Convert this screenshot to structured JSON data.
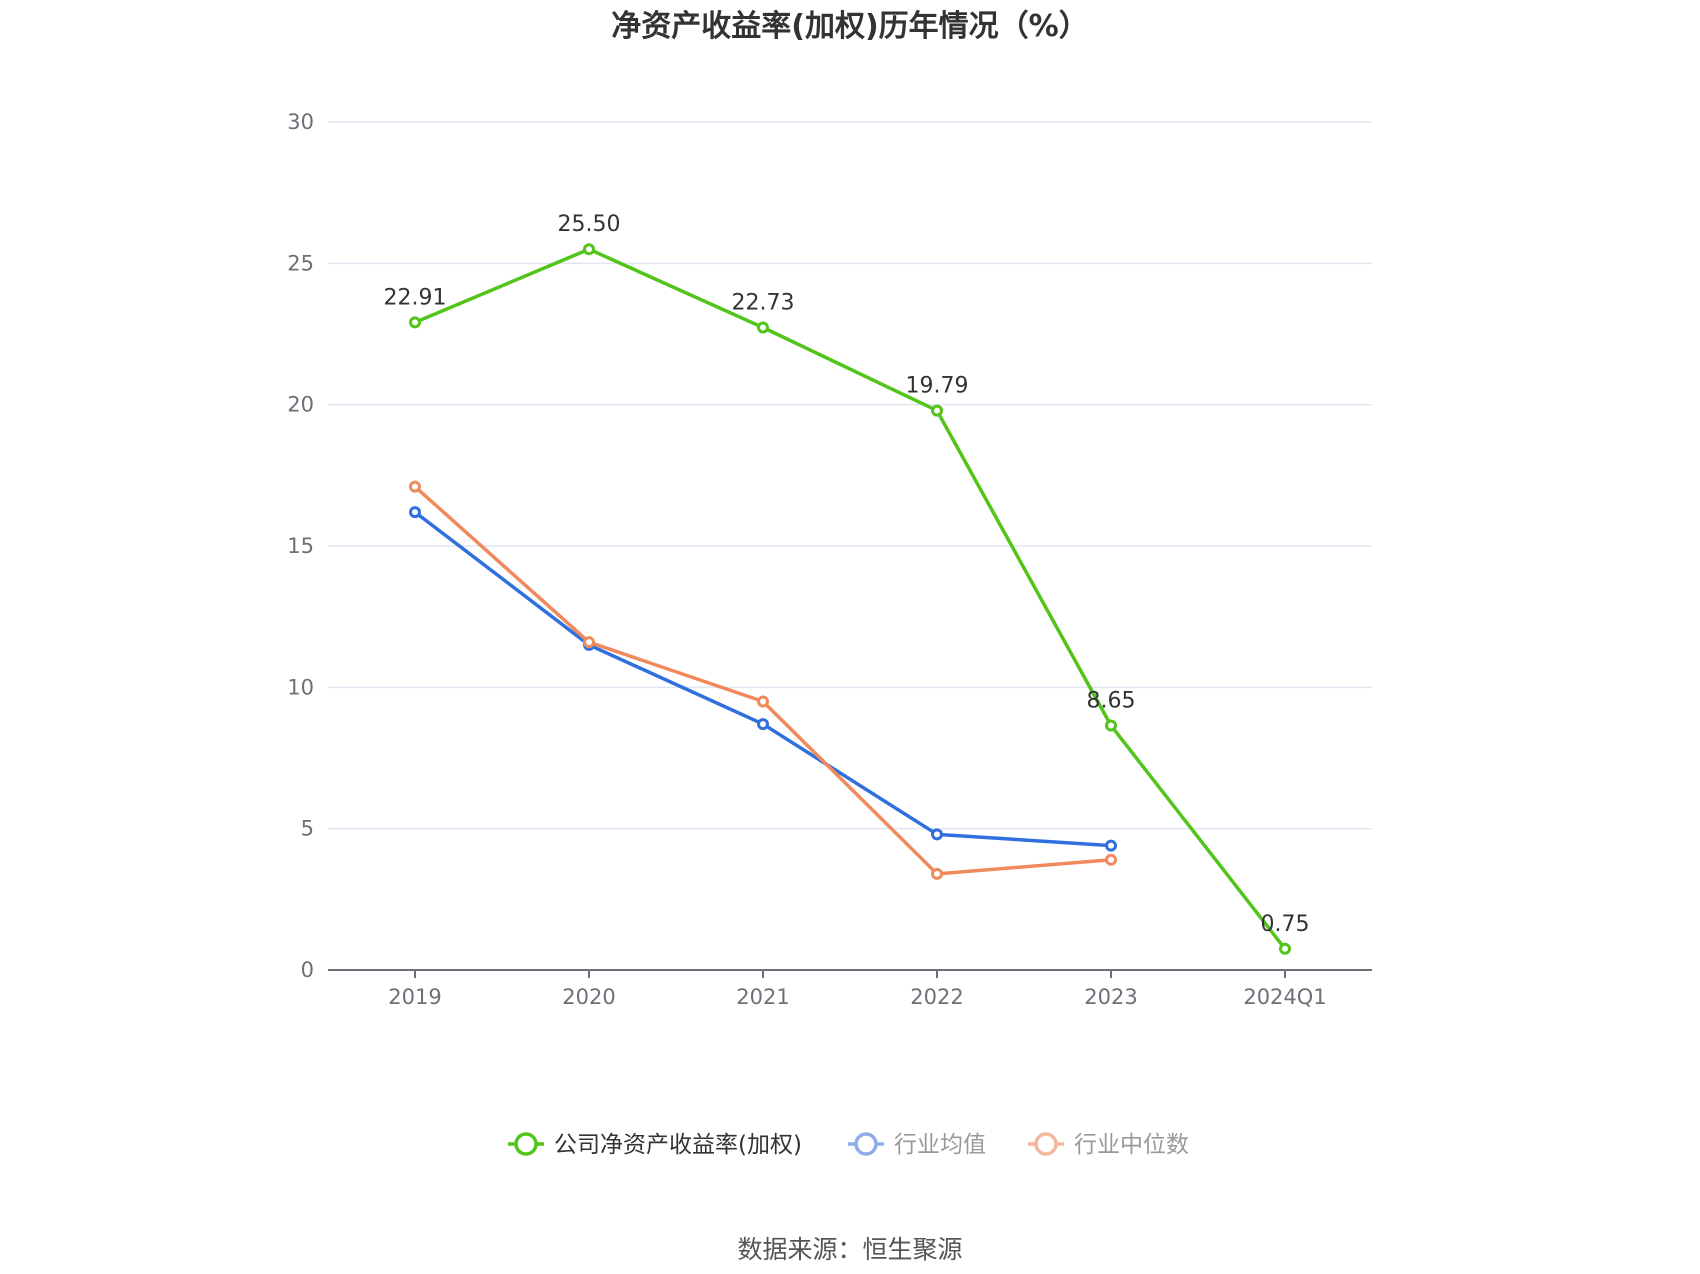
{
  "chart_data": {
    "type": "line",
    "title": "净资产收益率(加权)历年情况（%）",
    "categories": [
      "2019",
      "2020",
      "2021",
      "2022",
      "2023",
      "2024Q1"
    ],
    "ylim": [
      0,
      30
    ],
    "yticks": [
      "0",
      "5",
      "10",
      "15",
      "20",
      "25",
      "30"
    ],
    "grid": true,
    "legend_position": "bottom",
    "series": [
      {
        "name": "公司净资产收益率(加权)",
        "color": "#52c41a",
        "values": [
          22.91,
          25.5,
          22.73,
          19.79,
          8.65,
          0.75
        ],
        "labels": [
          "22.91",
          "25.50",
          "22.73",
          "19.79",
          "8.65",
          "0.75"
        ]
      },
      {
        "name": "行业均值",
        "color": "#2f6fde",
        "values": [
          16.2,
          11.5,
          8.7,
          4.8,
          4.4,
          null
        ]
      },
      {
        "name": "行业中位数",
        "color": "#f08a5d",
        "values": [
          17.1,
          11.6,
          9.5,
          3.4,
          3.9,
          null
        ]
      }
    ],
    "legend_colors": [
      "#52c41a",
      "#8faee8",
      "#f5b89a"
    ],
    "source": "数据来源：恒生聚源"
  }
}
